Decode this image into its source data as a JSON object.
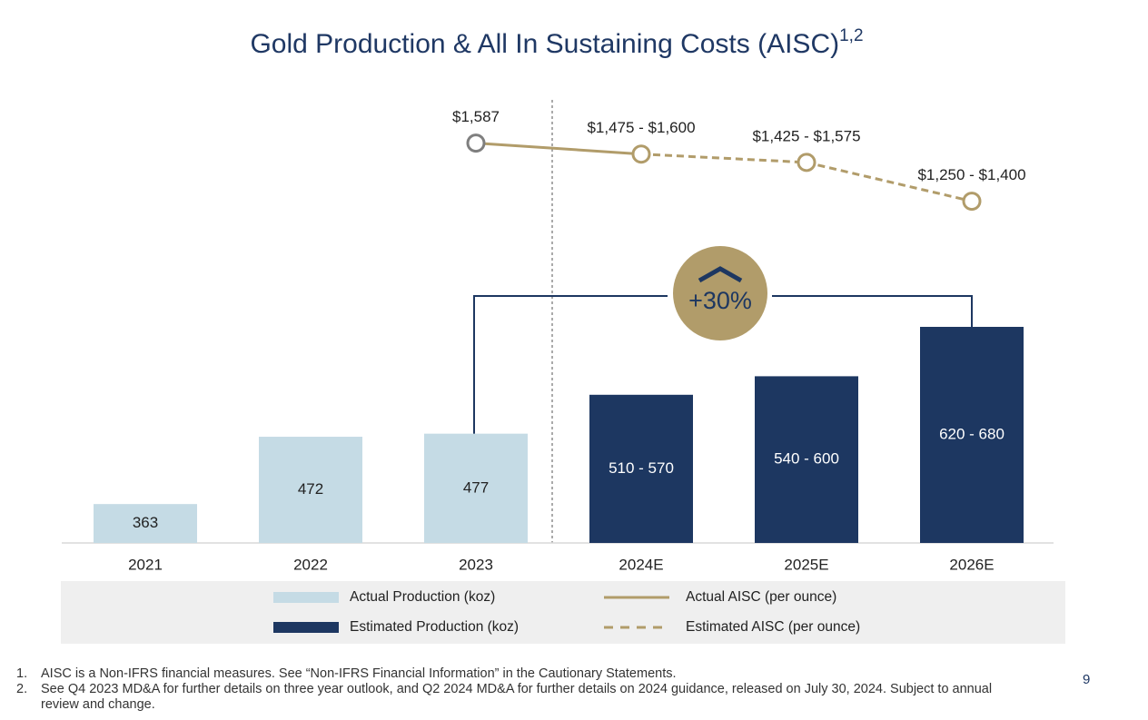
{
  "chart_data": {
    "type": "combo",
    "title": "Gold Production & All In Sustaining Costs (AISC)",
    "title_note": "1,2",
    "categories": [
      "2021",
      "2022",
      "2023",
      "2024E",
      "2025E",
      "2026E"
    ],
    "ylim": [
      300,
      700
    ],
    "y2lim": [
      1000,
      1700
    ],
    "series": [
      {
        "type": "bar",
        "name": "Actual Production (koz)",
        "color": "#c5dbe5",
        "values": [
          363,
          472,
          477,
          null,
          null,
          null
        ]
      },
      {
        "type": "bar",
        "name": "Estimated Production (koz)",
        "color": "#1d3761",
        "low": [
          null,
          null,
          null,
          510,
          540,
          620
        ],
        "high": [
          null,
          null,
          null,
          570,
          600,
          680
        ],
        "value_labels": [
          null,
          null,
          null,
          "510 - 570",
          "540 - 600",
          "620 - 680"
        ]
      },
      {
        "type": "line",
        "axis": "y2",
        "name": "Actual AISC (per ounce)",
        "color": "#b19c6a",
        "values": [
          null,
          null,
          1587,
          null,
          null,
          null
        ],
        "value_labels": [
          null,
          null,
          "$1,587",
          null,
          null,
          null
        ]
      },
      {
        "type": "line",
        "axis": "y2",
        "dashed": true,
        "name": "Estimated AISC (per ounce)",
        "color": "#b19c6a",
        "low": [
          null,
          null,
          null,
          1475,
          1425,
          1250
        ],
        "high": [
          null,
          null,
          null,
          1600,
          1575,
          1400
        ],
        "value_labels": [
          null,
          null,
          null,
          "$1,475 - $1,600",
          "$1,425 - $1,575",
          "$1,250 - $1,400"
        ]
      }
    ],
    "annotation": "+30%"
  },
  "footnotes": [
    {
      "marker": "1.",
      "text": "AISC is a Non-IFRS financial measures. See “Non-IFRS Financial Information” in the Cautionary Statements."
    },
    {
      "marker": "2.",
      "text": "See Q4 2023 MD&A for further details on three year outlook, and Q2 2024 MD&A for further details on 2024 guidance, released on July 30, 2024. Subject to annual review and change."
    }
  ],
  "page_number": "9"
}
